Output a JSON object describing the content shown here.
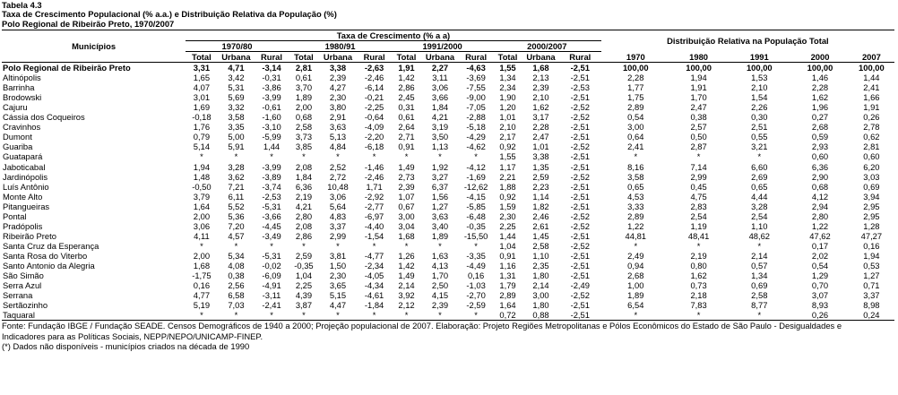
{
  "title_lines": [
    "Tabela 4.3",
    "Taxa de Crescimento Populacional (% a.a.) e Distribuição Relativa da População (%)",
    "Polo Regional de Ribeirão Preto, 1970/2007"
  ],
  "headers": {
    "municipios": "Municípios",
    "taxa_group": "Taxa de Crescimento (% a a)",
    "dist_group": "Distribuição Relativa na População Total",
    "periods": [
      "1970/80",
      "1980/91",
      "1991/2000",
      "2000/2007"
    ],
    "subcols": [
      "Total",
      "Urbana",
      "Rural"
    ],
    "years": [
      "1970",
      "1980",
      "1991",
      "2000",
      "2007"
    ]
  },
  "rows": [
    {
      "name": "Polo Regional de Ribeirão Preto",
      "values": [
        "3,31",
        "4,71",
        "-3,14",
        "2,81",
        "3,38",
        "-2,63",
        "1,91",
        "2,27",
        "-4,63",
        "1,55",
        "1,68",
        "-2,51",
        "100,00",
        "100,00",
        "100,00",
        "100,00",
        "100,00"
      ]
    },
    {
      "name": "Altinópolis",
      "values": [
        "1,65",
        "3,42",
        "-0,31",
        "0,61",
        "2,39",
        "-2,46",
        "1,42",
        "3,11",
        "-3,69",
        "1,34",
        "2,13",
        "-2,51",
        "2,28",
        "1,94",
        "1,53",
        "1,46",
        "1,44"
      ]
    },
    {
      "name": "Barrinha",
      "values": [
        "4,07",
        "5,31",
        "-3,86",
        "3,70",
        "4,27",
        "-6,14",
        "2,86",
        "3,06",
        "-7,55",
        "2,34",
        "2,39",
        "-2,53",
        "1,77",
        "1,91",
        "2,10",
        "2,28",
        "2,41"
      ]
    },
    {
      "name": "Brodowski",
      "values": [
        "3,01",
        "5,69",
        "-3,99",
        "1,89",
        "2,30",
        "-0,21",
        "2,45",
        "3,66",
        "-9,00",
        "1,90",
        "2,10",
        "-2,51",
        "1,75",
        "1,70",
        "1,54",
        "1,62",
        "1,66"
      ]
    },
    {
      "name": "Cajuru",
      "values": [
        "1,69",
        "3,32",
        "-0,61",
        "2,00",
        "3,80",
        "-2,25",
        "0,31",
        "1,84",
        "-7,05",
        "1,20",
        "1,62",
        "-2,52",
        "2,89",
        "2,47",
        "2,26",
        "1,96",
        "1,91"
      ]
    },
    {
      "name": "Cássia dos Coqueiros",
      "values": [
        "-0,18",
        "3,58",
        "-1,60",
        "0,68",
        "2,91",
        "-0,64",
        "0,61",
        "4,21",
        "-2,88",
        "1,01",
        "3,17",
        "-2,52",
        "0,54",
        "0,38",
        "0,30",
        "0,27",
        "0,26"
      ]
    },
    {
      "name": "Cravinhos",
      "values": [
        "1,76",
        "3,35",
        "-3,10",
        "2,58",
        "3,63",
        "-4,09",
        "2,64",
        "3,19",
        "-5,18",
        "2,10",
        "2,28",
        "-2,51",
        "3,00",
        "2,57",
        "2,51",
        "2,68",
        "2,78"
      ]
    },
    {
      "name": "Dumont",
      "values": [
        "0,79",
        "5,00",
        "-5,99",
        "3,73",
        "5,13",
        "-2,20",
        "2,71",
        "3,50",
        "-4,29",
        "2,17",
        "2,47",
        "-2,51",
        "0,64",
        "0,50",
        "0,55",
        "0,59",
        "0,62"
      ]
    },
    {
      "name": "Guariba",
      "values": [
        "5,14",
        "5,91",
        "1,44",
        "3,85",
        "4,84",
        "-6,18",
        "0,91",
        "1,13",
        "-4,62",
        "0,92",
        "1,01",
        "-2,52",
        "2,41",
        "2,87",
        "3,21",
        "2,93",
        "2,81"
      ]
    },
    {
      "name": "Guatapará",
      "values": [
        "*",
        "*",
        "*",
        "*",
        "*",
        "*",
        "*",
        "*",
        "*",
        "1,55",
        "3,38",
        "-2,51",
        "*",
        "*",
        "*",
        "0,60",
        "0,60"
      ]
    },
    {
      "name": "Jaboticabal",
      "values": [
        "1,94",
        "3,28",
        "-3,99",
        "2,08",
        "2,52",
        "-1,46",
        "1,49",
        "1,92",
        "-4,12",
        "1,17",
        "1,35",
        "-2,51",
        "8,16",
        "7,14",
        "6,60",
        "6,36",
        "6,20"
      ]
    },
    {
      "name": "Jardinópolis",
      "values": [
        "1,48",
        "3,62",
        "-3,89",
        "1,84",
        "2,72",
        "-2,46",
        "2,73",
        "3,27",
        "-1,69",
        "2,21",
        "2,59",
        "-2,52",
        "3,58",
        "2,99",
        "2,69",
        "2,90",
        "3,03"
      ]
    },
    {
      "name": "Luís Antônio",
      "values": [
        "-0,50",
        "7,21",
        "-3,74",
        "6,36",
        "10,48",
        "1,71",
        "2,39",
        "6,37",
        "-12,62",
        "1,88",
        "2,23",
        "-2,51",
        "0,65",
        "0,45",
        "0,65",
        "0,68",
        "0,69"
      ]
    },
    {
      "name": "Monte Alto",
      "values": [
        "3,79",
        "6,11",
        "-2,53",
        "2,19",
        "3,06",
        "-2,92",
        "1,07",
        "1,56",
        "-4,15",
        "0,92",
        "1,14",
        "-2,51",
        "4,53",
        "4,75",
        "4,44",
        "4,12",
        "3,94"
      ]
    },
    {
      "name": "Pitangueiras",
      "values": [
        "1,64",
        "5,52",
        "-5,31",
        "4,21",
        "5,64",
        "-2,77",
        "0,67",
        "1,27",
        "-5,85",
        "1,59",
        "1,82",
        "-2,51",
        "3,33",
        "2,83",
        "3,28",
        "2,94",
        "2,95"
      ]
    },
    {
      "name": "Pontal",
      "values": [
        "2,00",
        "5,36",
        "-3,66",
        "2,80",
        "4,83",
        "-6,97",
        "3,00",
        "3,63",
        "-6,48",
        "2,30",
        "2,46",
        "-2,52",
        "2,89",
        "2,54",
        "2,54",
        "2,80",
        "2,95"
      ]
    },
    {
      "name": "Pradópolis",
      "values": [
        "3,06",
        "7,20",
        "-4,45",
        "2,08",
        "3,37",
        "-4,40",
        "3,04",
        "3,40",
        "-0,35",
        "2,25",
        "2,61",
        "-2,52",
        "1,22",
        "1,19",
        "1,10",
        "1,22",
        "1,28"
      ]
    },
    {
      "name": "Ribeirão Preto",
      "values": [
        "4,11",
        "4,57",
        "-3,49",
        "2,86",
        "2,99",
        "-1,54",
        "1,68",
        "1,89",
        "-15,50",
        "1,44",
        "1,45",
        "-2,51",
        "44,81",
        "48,41",
        "48,62",
        "47,62",
        "47,27"
      ]
    },
    {
      "name": "Santa Cruz da Esperança",
      "values": [
        "*",
        "*",
        "*",
        "*",
        "*",
        "*",
        "*",
        "*",
        "*",
        "1,04",
        "2,58",
        "-2,52",
        "*",
        "*",
        "*",
        "0,17",
        "0,16"
      ]
    },
    {
      "name": "Santa Rosa do Viterbo",
      "values": [
        "2,00",
        "5,34",
        "-5,31",
        "2,59",
        "3,81",
        "-4,77",
        "1,26",
        "1,63",
        "-3,35",
        "0,91",
        "1,10",
        "-2,51",
        "2,49",
        "2,19",
        "2,14",
        "2,02",
        "1,94"
      ]
    },
    {
      "name": "Santo Antonio da Alegria",
      "values": [
        "1,68",
        "4,08",
        "-0,02",
        "-0,35",
        "1,50",
        "-2,34",
        "1,42",
        "4,13",
        "-4,49",
        "1,16",
        "2,35",
        "-2,51",
        "0,94",
        "0,80",
        "0,57",
        "0,54",
        "0,53"
      ]
    },
    {
      "name": "São Simão",
      "values": [
        "-1,75",
        "0,38",
        "-6,09",
        "1,04",
        "2,30",
        "-4,05",
        "1,49",
        "1,70",
        "0,16",
        "1,31",
        "1,80",
        "-2,51",
        "2,68",
        "1,62",
        "1,34",
        "1,29",
        "1,27"
      ]
    },
    {
      "name": "Serra Azul",
      "values": [
        "0,16",
        "2,56",
        "-4,91",
        "2,25",
        "3,65",
        "-4,34",
        "2,14",
        "2,50",
        "-1,03",
        "1,79",
        "2,14",
        "-2,49",
        "1,00",
        "0,73",
        "0,69",
        "0,70",
        "0,71"
      ]
    },
    {
      "name": "Serrana",
      "values": [
        "4,77",
        "6,58",
        "-3,11",
        "4,39",
        "5,15",
        "-4,61",
        "3,92",
        "4,15",
        "-2,70",
        "2,89",
        "3,00",
        "-2,52",
        "1,89",
        "2,18",
        "2,58",
        "3,07",
        "3,37"
      ]
    },
    {
      "name": "Sertãozinho",
      "values": [
        "5,19",
        "7,03",
        "-2,41",
        "3,87",
        "4,47",
        "-1,84",
        "2,12",
        "2,39",
        "-2,59",
        "1,64",
        "1,80",
        "-2,51",
        "6,54",
        "7,83",
        "8,77",
        "8,93",
        "8,98"
      ]
    },
    {
      "name": "Taquaral",
      "values": [
        "*",
        "*",
        "*",
        "*",
        "*",
        "*",
        "*",
        "*",
        "*",
        "0,72",
        "0,88",
        "-2,51",
        "*",
        "*",
        "*",
        "0,26",
        "0,24"
      ]
    }
  ],
  "footnotes": {
    "source_line1": "Fonte: Fundação IBGE / Fundação SEADE. Censos Demográficos de 1940 a 2000; Projeção populacional de 2007. Elaboração: Projeto Regiões Metropolitanas e Pólos Econômicos do Estado de São Paulo - Desigualdades e",
    "source_line2": "Indicadores para as Políticas Sociais, NEPP/NEPO/UNICAMP-FINEP.",
    "note": "(*) Dados não disponíveis - municípios criados na década de 1990"
  }
}
